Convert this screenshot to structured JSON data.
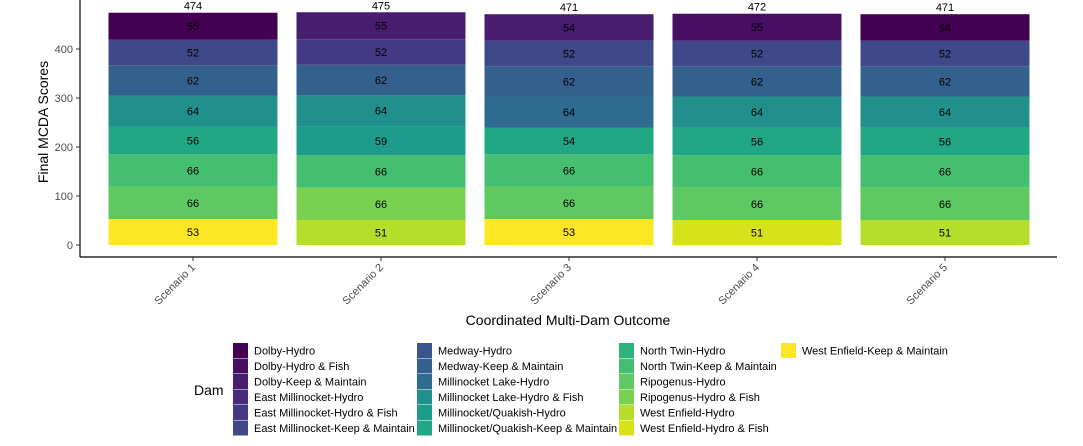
{
  "chart_data": {
    "type": "bar",
    "stacked": true,
    "xlabel": "Coordinated Multi-Dam Outcome",
    "ylabel": "Final MCDA Scores",
    "ylim": [
      0,
      480
    ],
    "yticks": [
      0,
      100,
      200,
      300,
      400
    ],
    "grid": false,
    "legend_title": "Dam",
    "legend_position": "bottom",
    "categories": [
      "Scenario 1",
      "Scenario 2",
      "Scenario 3",
      "Scenario 4",
      "Scenario 5"
    ],
    "totals": [
      474,
      475,
      471,
      472,
      471
    ],
    "legend": [
      {
        "name": "Dolby-Hydro",
        "color": "#440154"
      },
      {
        "name": "Dolby-Hydro & Fish",
        "color": "#470e61"
      },
      {
        "name": "Dolby-Keep & Maintain",
        "color": "#481d6f"
      },
      {
        "name": "East Millinocket-Hydro",
        "color": "#472a7a"
      },
      {
        "name": "East Millinocket-Hydro & Fish",
        "color": "#443983"
      },
      {
        "name": "East Millinocket-Keep & Maintain",
        "color": "#3f4889"
      },
      {
        "name": "Medway-Hydro",
        "color": "#3a548c"
      },
      {
        "name": "Medway-Keep & Maintain",
        "color": "#34608d"
      },
      {
        "name": "Millinocket Lake-Hydro",
        "color": "#2e6b8e"
      },
      {
        "name": "Millinocket Lake-Hydro & Fish",
        "color": "#21908d"
      },
      {
        "name": "Millinocket/Quakish-Hydro",
        "color": "#1e9b8a"
      },
      {
        "name": "Millinocket/Quakish-Keep & Maintain",
        "color": "#22a785"
      },
      {
        "name": "North Twin-Hydro",
        "color": "#2eb37c"
      },
      {
        "name": "North Twin-Keep & Maintain",
        "color": "#44bf70"
      },
      {
        "name": "Ripogenus-Hydro",
        "color": "#5ec962"
      },
      {
        "name": "Ripogenus-Hydro & Fish",
        "color": "#7ad151"
      },
      {
        "name": "West Enfield-Hydro",
        "color": "#b5de2b"
      },
      {
        "name": "West Enfield-Hydro & Fish",
        "color": "#d8e219"
      },
      {
        "name": "West Enfield-Keep & Maintain",
        "color": "#fde725"
      }
    ],
    "stacks": [
      [
        {
          "dam": "West Enfield-Keep & Maintain",
          "value": 53
        },
        {
          "dam": "Ripogenus-Hydro",
          "value": 66
        },
        {
          "dam": "North Twin-Keep & Maintain",
          "value": 66
        },
        {
          "dam": "Millinocket/Quakish-Keep & Maintain",
          "value": 56
        },
        {
          "dam": "Millinocket Lake-Hydro & Fish",
          "value": 64
        },
        {
          "dam": "Medway-Keep & Maintain",
          "value": 62
        },
        {
          "dam": "East Millinocket-Keep & Maintain",
          "value": 52
        },
        {
          "dam": "Dolby-Hydro",
          "value": 55
        }
      ],
      [
        {
          "dam": "West Enfield-Hydro",
          "value": 51
        },
        {
          "dam": "Ripogenus-Hydro & Fish",
          "value": 66
        },
        {
          "dam": "North Twin-Keep & Maintain",
          "value": 66
        },
        {
          "dam": "Millinocket/Quakish-Hydro",
          "value": 59
        },
        {
          "dam": "Millinocket Lake-Hydro & Fish",
          "value": 64
        },
        {
          "dam": "Medway-Keep & Maintain",
          "value": 62
        },
        {
          "dam": "East Millinocket-Hydro & Fish",
          "value": 52
        },
        {
          "dam": "Dolby-Keep & Maintain",
          "value": 55
        }
      ],
      [
        {
          "dam": "West Enfield-Keep & Maintain",
          "value": 53
        },
        {
          "dam": "Ripogenus-Hydro",
          "value": 66
        },
        {
          "dam": "North Twin-Keep & Maintain",
          "value": 66
        },
        {
          "dam": "Millinocket/Quakish-Keep & Maintain",
          "value": 54
        },
        {
          "dam": "Millinocket Lake-Hydro",
          "value": 64
        },
        {
          "dam": "Medway-Keep & Maintain",
          "value": 62
        },
        {
          "dam": "East Millinocket-Keep & Maintain",
          "value": 52
        },
        {
          "dam": "Dolby-Keep & Maintain",
          "value": 54
        }
      ],
      [
        {
          "dam": "West Enfield-Hydro & Fish",
          "value": 51
        },
        {
          "dam": "Ripogenus-Hydro",
          "value": 66
        },
        {
          "dam": "North Twin-Keep & Maintain",
          "value": 66
        },
        {
          "dam": "Millinocket/Quakish-Keep & Maintain",
          "value": 56
        },
        {
          "dam": "Millinocket Lake-Hydro & Fish",
          "value": 64
        },
        {
          "dam": "Medway-Keep & Maintain",
          "value": 62
        },
        {
          "dam": "East Millinocket-Keep & Maintain",
          "value": 52
        },
        {
          "dam": "Dolby-Hydro & Fish",
          "value": 55
        }
      ],
      [
        {
          "dam": "West Enfield-Hydro",
          "value": 51
        },
        {
          "dam": "Ripogenus-Hydro",
          "value": 66
        },
        {
          "dam": "North Twin-Keep & Maintain",
          "value": 66
        },
        {
          "dam": "Millinocket/Quakish-Keep & Maintain",
          "value": 56
        },
        {
          "dam": "Millinocket Lake-Hydro & Fish",
          "value": 64
        },
        {
          "dam": "Medway-Keep & Maintain",
          "value": 62
        },
        {
          "dam": "East Millinocket-Keep & Maintain",
          "value": 52
        },
        {
          "dam": "Dolby-Hydro",
          "value": 54
        }
      ]
    ]
  }
}
